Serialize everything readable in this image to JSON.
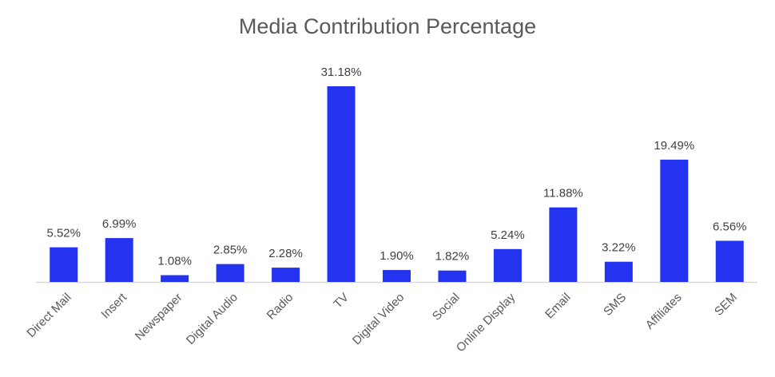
{
  "chart_data": {
    "type": "bar",
    "title": "Media Contribution Percentage",
    "xlabel": "",
    "ylabel": "",
    "categories": [
      "Direct Mail",
      "Insert",
      "Newspaper",
      "Digital Audio",
      "Radio",
      "TV",
      "Digital Video",
      "Social",
      "Online Display",
      "Email",
      "SMS",
      "Affiliates",
      "SEM"
    ],
    "values": [
      5.52,
      6.99,
      1.08,
      2.85,
      2.28,
      31.18,
      1.9,
      1.82,
      5.24,
      11.88,
      3.22,
      19.49,
      6.56
    ],
    "data_labels": [
      "5.52%",
      "6.99%",
      "1.08%",
      "2.85%",
      "2.28%",
      "31.18%",
      "1.90%",
      "1.82%",
      "5.24%",
      "11.88%",
      "3.22%",
      "19.49%",
      "6.56%"
    ],
    "ylim": [
      0,
      31.18
    ],
    "grid": false,
    "legend": "none",
    "bar_color": "#2433F0",
    "axis_color": "#D9D9D9"
  }
}
